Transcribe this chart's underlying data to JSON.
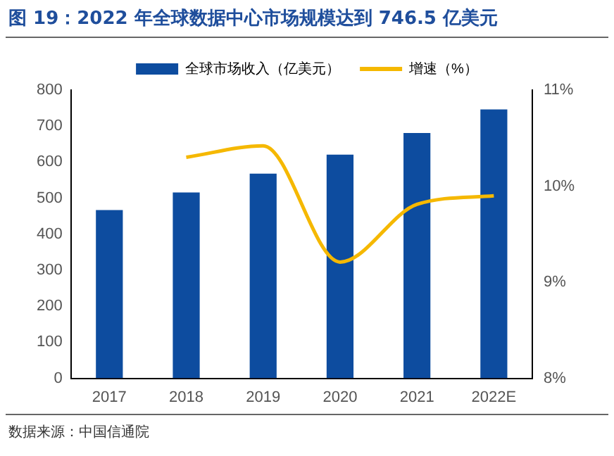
{
  "chart_data": {
    "type": "bar",
    "title": "图 19：2022 年全球数据中心市场规模达到 746.5 亿美元",
    "categories": [
      "2017",
      "2018",
      "2019",
      "2020",
      "2021",
      "2022E"
    ],
    "series": [
      {
        "name": "全球市场收入（亿美元）",
        "color": "#0d4c9f",
        "values": [
          467,
          516,
          568,
          621,
          681,
          746.5
        ]
      },
      {
        "name": "增速（%）",
        "type": "line",
        "axis": "y2",
        "color": "#f5b800",
        "values": [
          null,
          10.3,
          10.42,
          9.21,
          9.81,
          9.9
        ]
      }
    ],
    "ylim": [
      0,
      800
    ],
    "yticks": [
      0,
      100,
      200,
      300,
      400,
      500,
      600,
      700,
      800
    ],
    "y2lim": [
      8,
      11
    ],
    "y2ticks": [
      {
        "value": 8,
        "label": "8%"
      },
      {
        "value": 9,
        "label": "9%"
      },
      {
        "value": 10,
        "label": "10%"
      },
      {
        "value": 11,
        "label": "11%"
      }
    ],
    "grid": false,
    "legend": "top",
    "marker": "none",
    "annotations": [
      "数据来源：中国信通院"
    ]
  }
}
